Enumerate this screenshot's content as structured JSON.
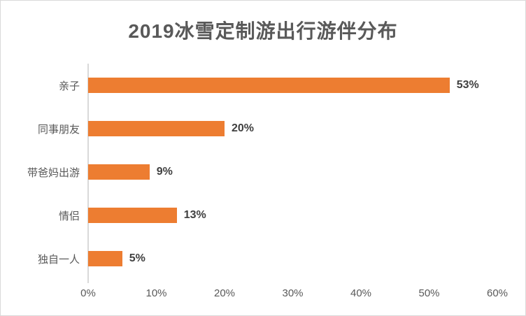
{
  "colors": {
    "bar": "#ED7D31",
    "title_text": "#595959",
    "axis_text": "#595959",
    "value_text": "#404040",
    "axis_line": "#D9D9D9",
    "frame_border": "#D9D9D9"
  },
  "chart_data": {
    "type": "bar",
    "orientation": "horizontal",
    "title": "2019冰雪定制游出行游伴分布",
    "categories": [
      "亲子",
      "同事朋友",
      "带爸妈出游",
      "情侣",
      "独自一人"
    ],
    "values": [
      53,
      20,
      9,
      13,
      5
    ],
    "data_labels": [
      "53%",
      "20%",
      "9%",
      "13%",
      "5%"
    ],
    "x_ticks": [
      "0%",
      "10%",
      "20%",
      "30%",
      "40%",
      "50%",
      "60%"
    ],
    "xlim": [
      0,
      60
    ],
    "xlabel": "",
    "ylabel": "",
    "grid": false,
    "legend": "none"
  }
}
